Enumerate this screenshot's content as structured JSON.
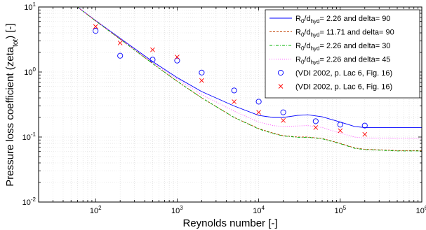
{
  "chart_data": {
    "type": "line",
    "xlabel": "Reynolds number [-]",
    "ylabel": {
      "main": "Pressure loss coefficient (zeta",
      "sub": "tot",
      "tail": ") [-]"
    },
    "xscale": "log",
    "yscale": "log",
    "xlim": [
      20,
      1000000
    ],
    "ylim": [
      0.01,
      10
    ],
    "grid": true,
    "legend_position": "top-right",
    "x_ticks": [
      {
        "base": "10",
        "exp": "2",
        "value": 100
      },
      {
        "base": "10",
        "exp": "3",
        "value": 1000
      },
      {
        "base": "10",
        "exp": "4",
        "value": 10000
      },
      {
        "base": "10",
        "exp": "5",
        "value": 100000
      },
      {
        "base": "10",
        "exp": "6",
        "value": 1000000
      }
    ],
    "y_ticks": [
      {
        "base": "10",
        "exp": "-2",
        "value": 0.01
      },
      {
        "base": "10",
        "exp": "-1",
        "value": 0.1
      },
      {
        "base": "10",
        "exp": "0",
        "value": 1
      },
      {
        "base": "10",
        "exp": "1",
        "value": 10
      }
    ],
    "series": [
      {
        "name": {
          "a": "R",
          "a_sub": "0",
          "b": "/d",
          "b_sub": "hyd",
          "c": "= 2.26 and delta= 90"
        },
        "color": "#0000ff",
        "style": "solid",
        "kind": "line",
        "x": [
          60,
          100,
          200,
          500,
          1000,
          2000,
          5000,
          10000,
          15000,
          20000,
          30000,
          40000,
          60000,
          100000,
          150000,
          200000,
          500000,
          1000000
        ],
        "y": [
          10,
          6.2,
          3.3,
          1.45,
          0.82,
          0.5,
          0.3,
          0.215,
          0.2,
          0.2,
          0.215,
          0.22,
          0.205,
          0.17,
          0.145,
          0.14,
          0.14,
          0.14
        ]
      },
      {
        "name": {
          "a": "R",
          "a_sub": "0",
          "b": "/d",
          "b_sub": "hyd",
          "c": "= 11.71 and delta= 90"
        },
        "color": "#c04000",
        "style": "dashed",
        "kind": "line",
        "x": [
          60,
          100,
          200,
          500,
          1000,
          2000,
          5000,
          10000,
          15000,
          20000,
          30000,
          40000,
          60000,
          100000,
          150000,
          200000,
          500000,
          1000000
        ],
        "y": [
          10,
          6.1,
          3.2,
          1.35,
          0.72,
          0.4,
          0.2,
          0.135,
          0.115,
          0.105,
          0.1,
          0.1,
          0.095,
          0.08,
          0.068,
          0.065,
          0.062,
          0.062
        ]
      },
      {
        "name": {
          "a": "R",
          "a_sub": "0",
          "b": "/d",
          "b_sub": "hyd",
          "c": "= 2.26 and delta= 30"
        },
        "color": "#00b000",
        "style": "dashdot",
        "kind": "line",
        "x": [
          60,
          100,
          200,
          500,
          1000,
          2000,
          5000,
          10000,
          15000,
          20000,
          30000,
          40000,
          60000,
          100000,
          150000,
          200000,
          500000,
          1000000
        ],
        "y": [
          10,
          6.1,
          3.2,
          1.35,
          0.72,
          0.4,
          0.2,
          0.133,
          0.113,
          0.104,
          0.099,
          0.099,
          0.094,
          0.079,
          0.067,
          0.064,
          0.061,
          0.061
        ]
      },
      {
        "name": {
          "a": "R",
          "a_sub": "0",
          "b": "/d",
          "b_sub": "hyd",
          "c": "= 2.26 and delta= 45"
        },
        "color": "#ff44ff",
        "style": "dotted",
        "kind": "line",
        "x": [
          60,
          100,
          200,
          500,
          1000,
          2000,
          5000,
          10000,
          15000,
          20000,
          30000,
          40000,
          60000,
          100000,
          150000,
          200000,
          500000,
          1000000
        ],
        "y": [
          10,
          6.2,
          3.25,
          1.4,
          0.78,
          0.45,
          0.25,
          0.17,
          0.15,
          0.145,
          0.148,
          0.15,
          0.14,
          0.115,
          0.1,
          0.096,
          0.095,
          0.095
        ]
      },
      {
        "name": {
          "c": "(VDI 2002, p. Lac 6, Fig. 16)"
        },
        "color": "#0000ff",
        "kind": "marker",
        "marker": "circle",
        "x": [
          100,
          200,
          500,
          1000,
          2000,
          5000,
          10000,
          20000,
          50000,
          100000,
          200000
        ],
        "y": [
          4.3,
          1.78,
          1.55,
          1.5,
          0.98,
          0.52,
          0.35,
          0.24,
          0.175,
          0.155,
          0.15
        ]
      },
      {
        "name": {
          "c": "(VDI 2002, p. Lac 6, Fig. 16)"
        },
        "color": "#ff0000",
        "kind": "marker",
        "marker": "cross",
        "x": [
          100,
          200,
          500,
          1000,
          2000,
          5000,
          10000,
          20000,
          50000,
          100000,
          200000
        ],
        "y": [
          5.0,
          2.8,
          2.2,
          1.7,
          0.74,
          0.35,
          0.24,
          0.18,
          0.14,
          0.125,
          0.11
        ]
      }
    ]
  }
}
